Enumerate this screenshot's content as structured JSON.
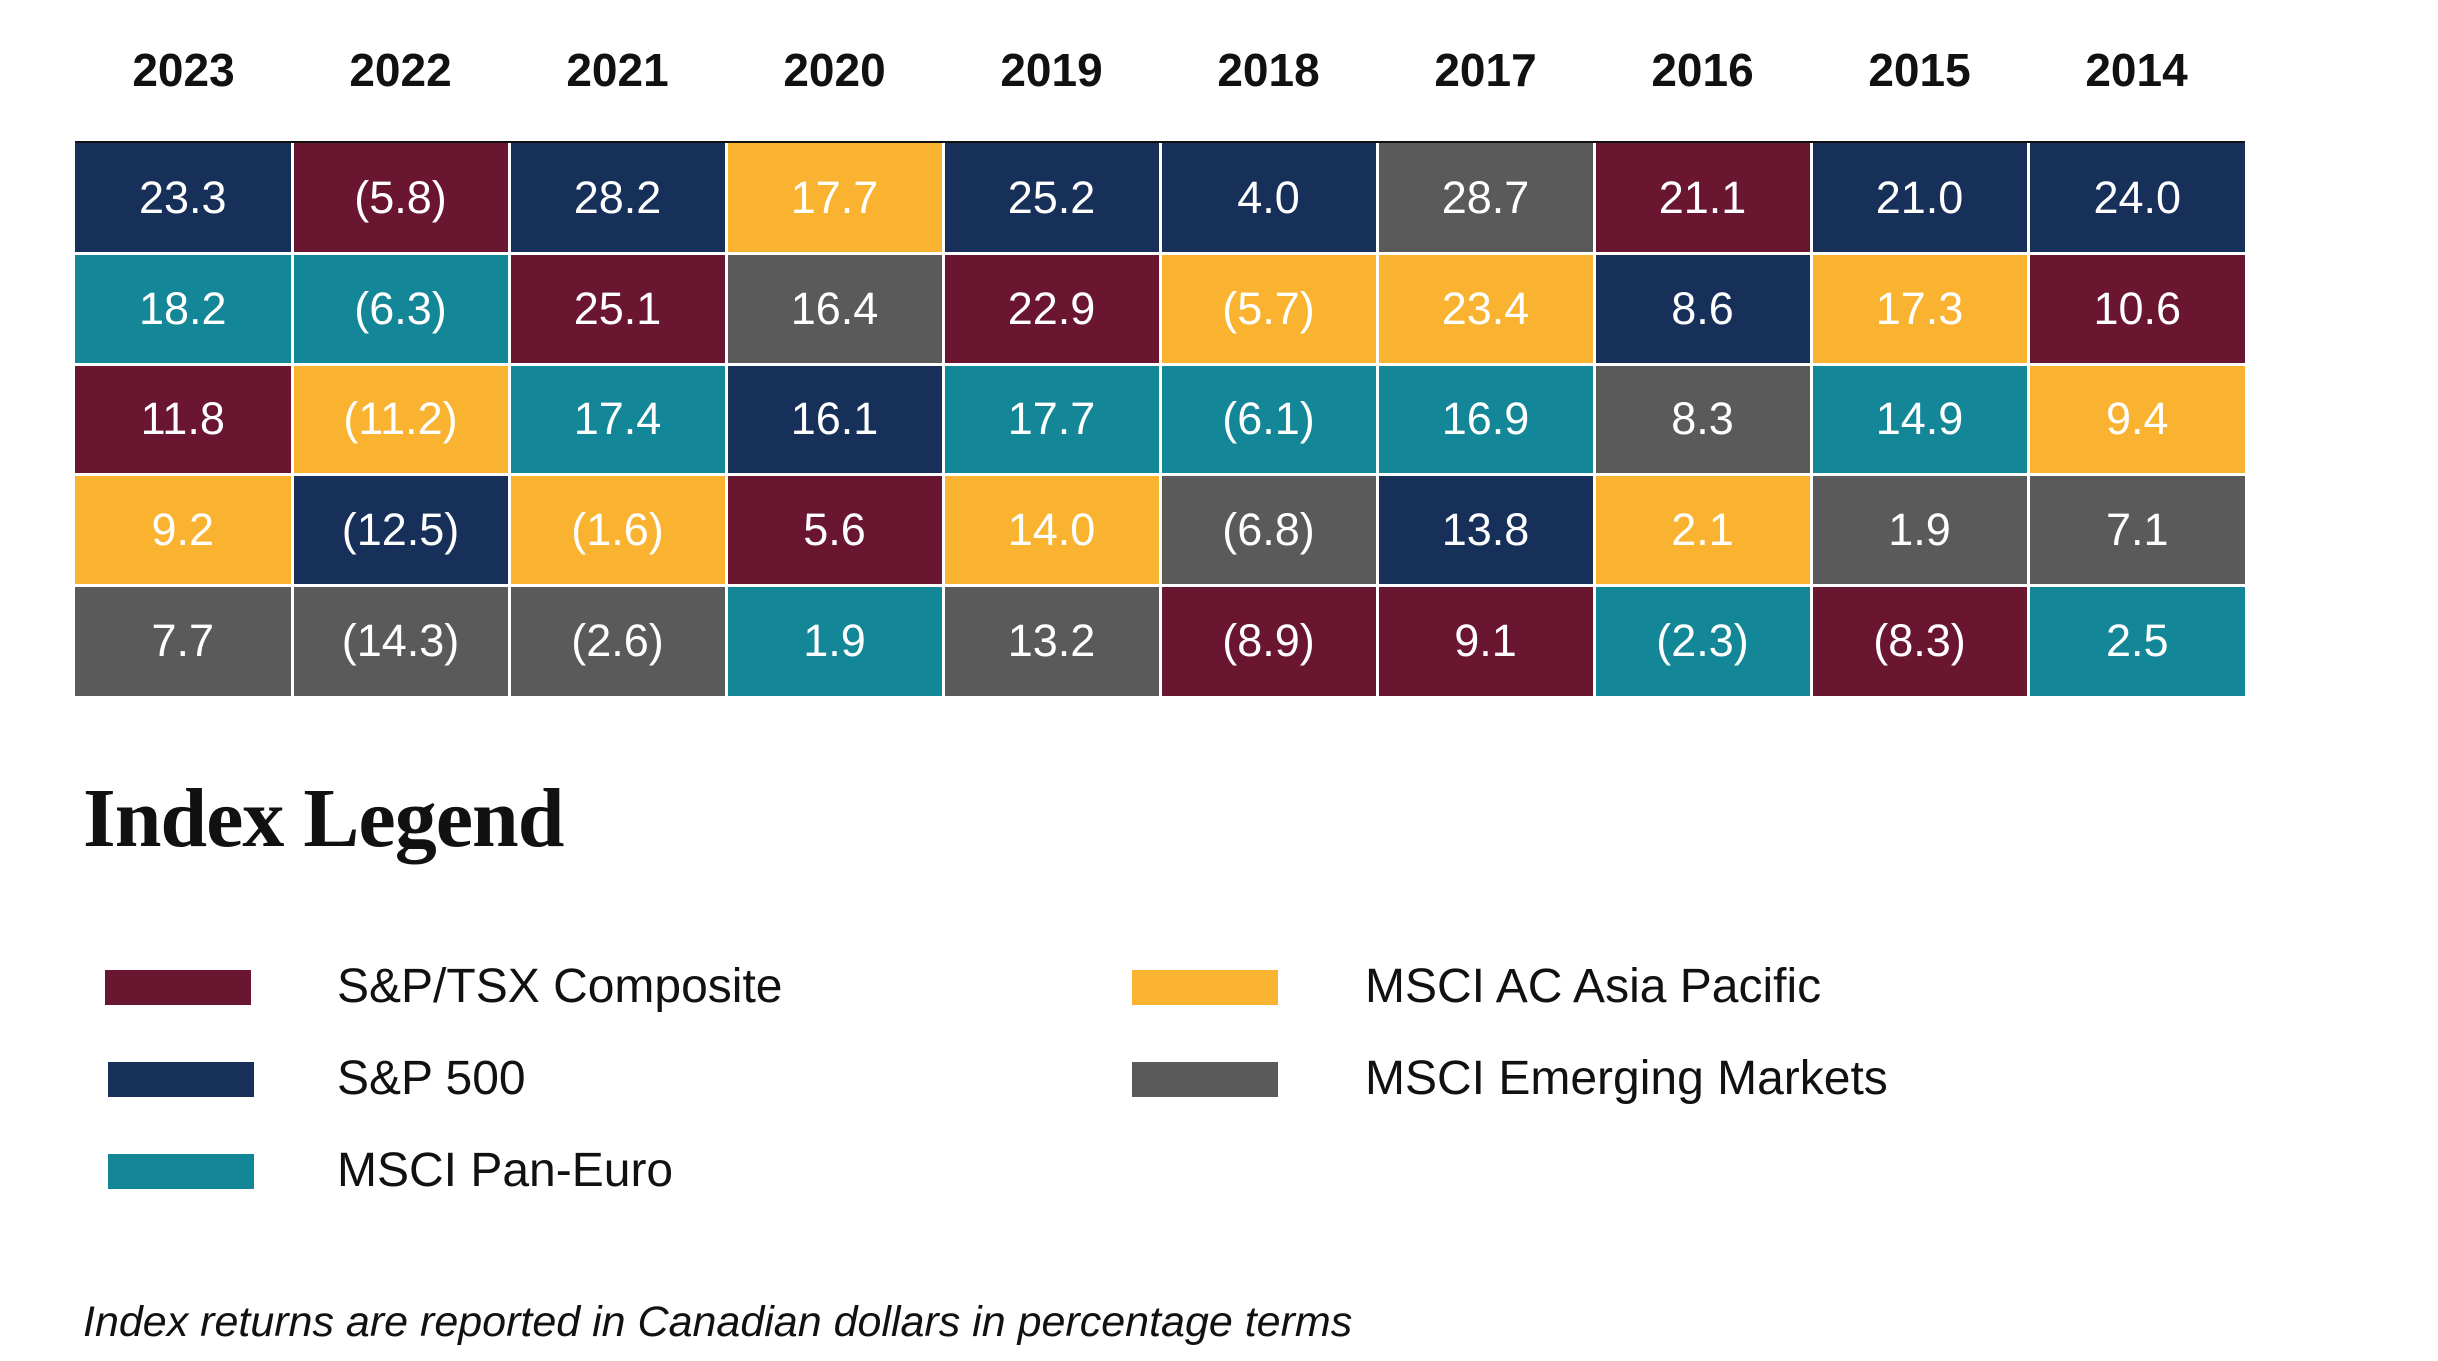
{
  "colors": {
    "sp_tsx": "#6b1630",
    "sp500": "#17305a",
    "pan_euro": "#138797",
    "asia_pacific": "#fab330",
    "emerging": "#5a5a5a"
  },
  "chart_data": {
    "type": "table",
    "years": [
      "2023",
      "2022",
      "2021",
      "2020",
      "2019",
      "2018",
      "2017",
      "2016",
      "2015",
      "2014"
    ],
    "rows": [
      [
        {
          "text": "23.3",
          "value": 23.3,
          "index": "sp500"
        },
        {
          "text": "(5.8)",
          "value": -5.8,
          "index": "sp_tsx"
        },
        {
          "text": "28.2",
          "value": 28.2,
          "index": "sp500"
        },
        {
          "text": "17.7",
          "value": 17.7,
          "index": "asia_pacific"
        },
        {
          "text": "25.2",
          "value": 25.2,
          "index": "sp500"
        },
        {
          "text": "4.0",
          "value": 4.0,
          "index": "sp500"
        },
        {
          "text": "28.7",
          "value": 28.7,
          "index": "emerging"
        },
        {
          "text": "21.1",
          "value": 21.1,
          "index": "sp_tsx"
        },
        {
          "text": "21.0",
          "value": 21.0,
          "index": "sp500"
        },
        {
          "text": "24.0",
          "value": 24.0,
          "index": "sp500"
        }
      ],
      [
        {
          "text": "18.2",
          "value": 18.2,
          "index": "pan_euro"
        },
        {
          "text": "(6.3)",
          "value": -6.3,
          "index": "pan_euro"
        },
        {
          "text": "25.1",
          "value": 25.1,
          "index": "sp_tsx"
        },
        {
          "text": "16.4",
          "value": 16.4,
          "index": "emerging"
        },
        {
          "text": "22.9",
          "value": 22.9,
          "index": "sp_tsx"
        },
        {
          "text": "(5.7)",
          "value": -5.7,
          "index": "asia_pacific"
        },
        {
          "text": "23.4",
          "value": 23.4,
          "index": "asia_pacific"
        },
        {
          "text": "8.6",
          "value": 8.6,
          "index": "sp500"
        },
        {
          "text": "17.3",
          "value": 17.3,
          "index": "asia_pacific"
        },
        {
          "text": "10.6",
          "value": 10.6,
          "index": "sp_tsx"
        }
      ],
      [
        {
          "text": "11.8",
          "value": 11.8,
          "index": "sp_tsx"
        },
        {
          "text": "(11.2)",
          "value": -11.2,
          "index": "asia_pacific"
        },
        {
          "text": "17.4",
          "value": 17.4,
          "index": "pan_euro"
        },
        {
          "text": "16.1",
          "value": 16.1,
          "index": "sp500"
        },
        {
          "text": "17.7",
          "value": 17.7,
          "index": "pan_euro"
        },
        {
          "text": "(6.1)",
          "value": -6.1,
          "index": "pan_euro"
        },
        {
          "text": "16.9",
          "value": 16.9,
          "index": "pan_euro"
        },
        {
          "text": "8.3",
          "value": 8.3,
          "index": "emerging"
        },
        {
          "text": "14.9",
          "value": 14.9,
          "index": "pan_euro"
        },
        {
          "text": "9.4",
          "value": 9.4,
          "index": "asia_pacific"
        }
      ],
      [
        {
          "text": "9.2",
          "value": 9.2,
          "index": "asia_pacific"
        },
        {
          "text": "(12.5)",
          "value": -12.5,
          "index": "sp500"
        },
        {
          "text": "(1.6)",
          "value": -1.6,
          "index": "asia_pacific"
        },
        {
          "text": "5.6",
          "value": 5.6,
          "index": "sp_tsx"
        },
        {
          "text": "14.0",
          "value": 14.0,
          "index": "asia_pacific"
        },
        {
          "text": "(6.8)",
          "value": -6.8,
          "index": "emerging"
        },
        {
          "text": "13.8",
          "value": 13.8,
          "index": "sp500"
        },
        {
          "text": "2.1",
          "value": 2.1,
          "index": "asia_pacific"
        },
        {
          "text": "1.9",
          "value": 1.9,
          "index": "emerging"
        },
        {
          "text": "7.1",
          "value": 7.1,
          "index": "emerging"
        }
      ],
      [
        {
          "text": "7.7",
          "value": 7.7,
          "index": "emerging"
        },
        {
          "text": "(14.3)",
          "value": -14.3,
          "index": "emerging"
        },
        {
          "text": "(2.6)",
          "value": -2.6,
          "index": "emerging"
        },
        {
          "text": "1.9",
          "value": 1.9,
          "index": "pan_euro"
        },
        {
          "text": "13.2",
          "value": 13.2,
          "index": "emerging"
        },
        {
          "text": "(8.9)",
          "value": -8.9,
          "index": "sp_tsx"
        },
        {
          "text": "9.1",
          "value": 9.1,
          "index": "sp_tsx"
        },
        {
          "text": "(2.3)",
          "value": -2.3,
          "index": "pan_euro"
        },
        {
          "text": "(8.3)",
          "value": -8.3,
          "index": "sp_tsx"
        },
        {
          "text": "2.5",
          "value": 2.5,
          "index": "pan_euro"
        }
      ]
    ]
  },
  "legend": {
    "title": "Index Legend",
    "items": [
      {
        "key": "sp_tsx",
        "label": "S&P/TSX Composite"
      },
      {
        "key": "sp500",
        "label": "S&P 500"
      },
      {
        "key": "pan_euro",
        "label": "MSCI Pan-Euro"
      },
      {
        "key": "asia_pacific",
        "label": "MSCI AC Asia Pacific"
      },
      {
        "key": "emerging",
        "label": "MSCI Emerging Markets"
      }
    ]
  },
  "footnote": "Index returns are reported in Canadian dollars in percentage terms"
}
